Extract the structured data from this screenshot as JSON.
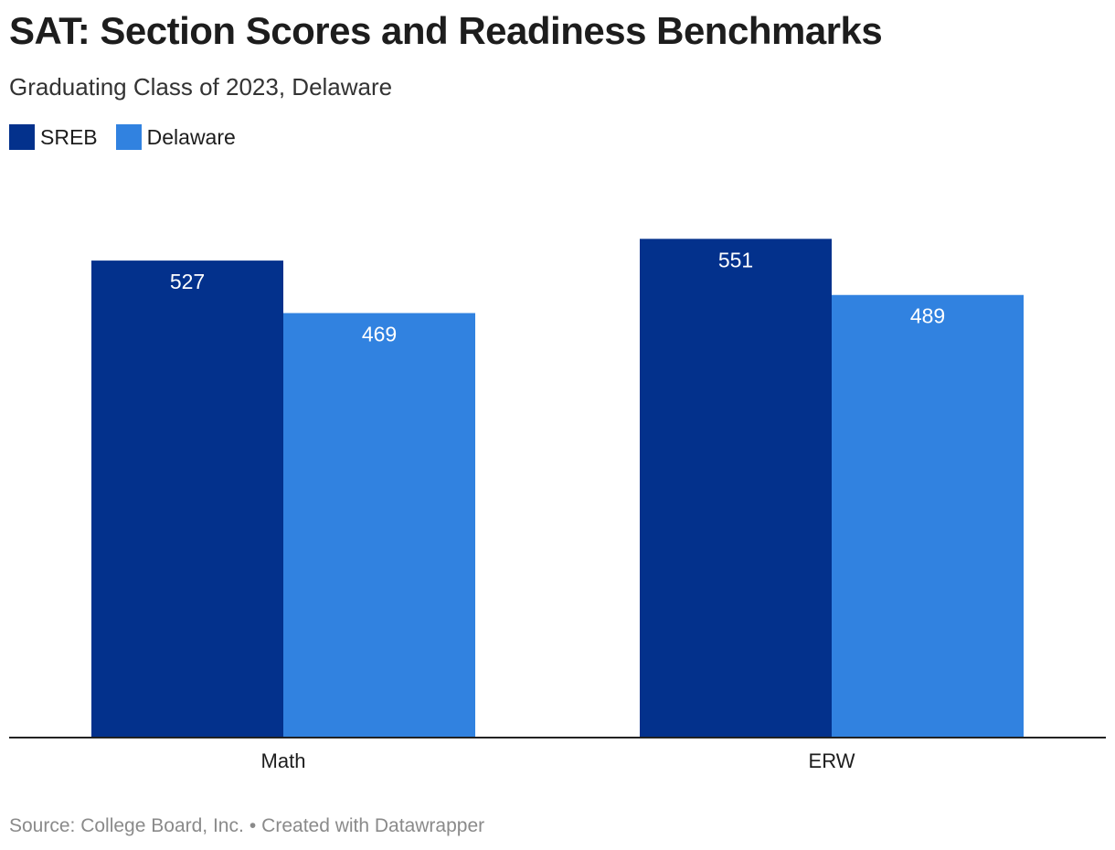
{
  "title": "SAT: Section Scores and Readiness Benchmarks",
  "subtitle": "Graduating Class of 2023, Delaware",
  "footer": {
    "source": "Source: College Board, Inc.",
    "separator": "•",
    "credit": "Created with Datawrapper"
  },
  "chart_data": {
    "type": "bar",
    "categories": [
      "Math",
      "ERW"
    ],
    "series": [
      {
        "name": "SREB",
        "values": [
          527,
          551
        ],
        "color": "#03318c"
      },
      {
        "name": "Delaware",
        "values": [
          469,
          489
        ],
        "color": "#3182e0"
      }
    ],
    "ylim": [
      0,
      620
    ],
    "grid": false,
    "legend_position": "top-left"
  }
}
